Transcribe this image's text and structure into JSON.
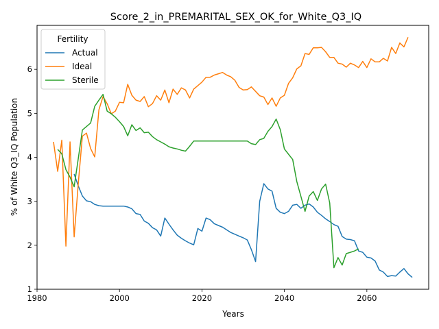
{
  "chart_data": {
    "type": "line",
    "title": "Score_2_in_PREMARITAL_SEX_OK_for_White_Q3_IQ",
    "xlabel": "Years",
    "ylabel": "% of White Q3_IQ Population",
    "xlim": [
      1980,
      2075
    ],
    "ylim": [
      1,
      7
    ],
    "xticks": [
      1980,
      2000,
      2020,
      2040,
      2060
    ],
    "yticks": [
      1,
      2,
      3,
      4,
      5,
      6
    ],
    "grid": false,
    "legend": {
      "title": "Fertility",
      "position": "top-left"
    },
    "series": [
      {
        "name": "Actual",
        "color": "#1f77b4",
        "points": [
          [
            1989,
            3.62
          ],
          [
            1990,
            3.35
          ],
          [
            1991,
            3.12
          ],
          [
            1992,
            3.01
          ],
          [
            1993,
            2.99
          ],
          [
            1994,
            2.93
          ],
          [
            1995,
            2.9
          ],
          [
            1996,
            2.89
          ],
          [
            1997,
            2.89
          ],
          [
            1998,
            2.89
          ],
          [
            1999,
            2.89
          ],
          [
            2000,
            2.89
          ],
          [
            2001,
            2.89
          ],
          [
            2002,
            2.87
          ],
          [
            2003,
            2.83
          ],
          [
            2004,
            2.72
          ],
          [
            2005,
            2.7
          ],
          [
            2006,
            2.55
          ],
          [
            2007,
            2.5
          ],
          [
            2008,
            2.4
          ],
          [
            2009,
            2.35
          ],
          [
            2010,
            2.21
          ],
          [
            2011,
            2.62
          ],
          [
            2012,
            2.48
          ],
          [
            2013,
            2.35
          ],
          [
            2014,
            2.23
          ],
          [
            2015,
            2.16
          ],
          [
            2016,
            2.1
          ],
          [
            2017,
            2.05
          ],
          [
            2018,
            2.01
          ],
          [
            2019,
            2.38
          ],
          [
            2020,
            2.32
          ],
          [
            2021,
            2.62
          ],
          [
            2022,
            2.58
          ],
          [
            2023,
            2.49
          ],
          [
            2024,
            2.45
          ],
          [
            2025,
            2.41
          ],
          [
            2026,
            2.35
          ],
          [
            2027,
            2.29
          ],
          [
            2028,
            2.25
          ],
          [
            2029,
            2.21
          ],
          [
            2030,
            2.17
          ],
          [
            2031,
            2.12
          ],
          [
            2032,
            1.9
          ],
          [
            2033,
            1.63
          ],
          [
            2034,
            3.0
          ],
          [
            2035,
            3.4
          ],
          [
            2036,
            3.28
          ],
          [
            2037,
            3.23
          ],
          [
            2038,
            2.84
          ],
          [
            2039,
            2.75
          ],
          [
            2040,
            2.72
          ],
          [
            2041,
            2.77
          ],
          [
            2042,
            2.91
          ],
          [
            2043,
            2.93
          ],
          [
            2044,
            2.84
          ],
          [
            2045,
            2.91
          ],
          [
            2046,
            2.94
          ],
          [
            2047,
            2.87
          ],
          [
            2048,
            2.75
          ],
          [
            2049,
            2.68
          ],
          [
            2050,
            2.6
          ],
          [
            2051,
            2.54
          ],
          [
            2052,
            2.47
          ],
          [
            2053,
            2.43
          ],
          [
            2054,
            2.2
          ],
          [
            2055,
            2.14
          ],
          [
            2056,
            2.13
          ],
          [
            2057,
            2.1
          ],
          [
            2058,
            1.87
          ],
          [
            2059,
            1.84
          ],
          [
            2060,
            1.73
          ],
          [
            2061,
            1.71
          ],
          [
            2062,
            1.64
          ],
          [
            2063,
            1.44
          ],
          [
            2064,
            1.39
          ],
          [
            2065,
            1.29
          ],
          [
            2066,
            1.31
          ],
          [
            2067,
            1.3
          ],
          [
            2068,
            1.39
          ],
          [
            2069,
            1.47
          ],
          [
            2070,
            1.35
          ],
          [
            2071,
            1.27
          ]
        ]
      },
      {
        "name": "Ideal",
        "color": "#ff7f0e",
        "points": [
          [
            1984,
            4.35
          ],
          [
            1985,
            3.68
          ],
          [
            1986,
            4.39
          ],
          [
            1987,
            1.98
          ],
          [
            1988,
            4.35
          ],
          [
            1989,
            2.19
          ],
          [
            1990,
            3.4
          ],
          [
            1991,
            4.48
          ],
          [
            1992,
            4.55
          ],
          [
            1993,
            4.2
          ],
          [
            1994,
            4.01
          ],
          [
            1995,
            5.08
          ],
          [
            1996,
            5.38
          ],
          [
            1997,
            5.22
          ],
          [
            1998,
            4.99
          ],
          [
            1999,
            5.05
          ],
          [
            2000,
            5.25
          ],
          [
            2001,
            5.24
          ],
          [
            2002,
            5.66
          ],
          [
            2003,
            5.41
          ],
          [
            2004,
            5.3
          ],
          [
            2005,
            5.27
          ],
          [
            2006,
            5.38
          ],
          [
            2007,
            5.15
          ],
          [
            2008,
            5.22
          ],
          [
            2009,
            5.4
          ],
          [
            2010,
            5.3
          ],
          [
            2011,
            5.53
          ],
          [
            2012,
            5.24
          ],
          [
            2013,
            5.55
          ],
          [
            2014,
            5.43
          ],
          [
            2015,
            5.58
          ],
          [
            2016,
            5.53
          ],
          [
            2017,
            5.35
          ],
          [
            2018,
            5.55
          ],
          [
            2019,
            5.63
          ],
          [
            2020,
            5.71
          ],
          [
            2021,
            5.82
          ],
          [
            2022,
            5.82
          ],
          [
            2023,
            5.87
          ],
          [
            2024,
            5.9
          ],
          [
            2025,
            5.93
          ],
          [
            2026,
            5.87
          ],
          [
            2027,
            5.83
          ],
          [
            2028,
            5.75
          ],
          [
            2029,
            5.59
          ],
          [
            2030,
            5.53
          ],
          [
            2031,
            5.54
          ],
          [
            2032,
            5.6
          ],
          [
            2033,
            5.5
          ],
          [
            2034,
            5.4
          ],
          [
            2035,
            5.37
          ],
          [
            2036,
            5.2
          ],
          [
            2037,
            5.35
          ],
          [
            2038,
            5.16
          ],
          [
            2039,
            5.35
          ],
          [
            2040,
            5.41
          ],
          [
            2041,
            5.68
          ],
          [
            2042,
            5.81
          ],
          [
            2043,
            6.01
          ],
          [
            2044,
            6.08
          ],
          [
            2045,
            6.36
          ],
          [
            2046,
            6.34
          ],
          [
            2047,
            6.49
          ],
          [
            2048,
            6.49
          ],
          [
            2049,
            6.5
          ],
          [
            2050,
            6.4
          ],
          [
            2051,
            6.27
          ],
          [
            2052,
            6.27
          ],
          [
            2053,
            6.14
          ],
          [
            2054,
            6.12
          ],
          [
            2055,
            6.05
          ],
          [
            2056,
            6.14
          ],
          [
            2057,
            6.1
          ],
          [
            2058,
            6.04
          ],
          [
            2059,
            6.18
          ],
          [
            2060,
            6.04
          ],
          [
            2061,
            6.24
          ],
          [
            2062,
            6.17
          ],
          [
            2063,
            6.17
          ],
          [
            2064,
            6.25
          ],
          [
            2065,
            6.19
          ],
          [
            2066,
            6.5
          ],
          [
            2067,
            6.36
          ],
          [
            2068,
            6.6
          ],
          [
            2069,
            6.51
          ],
          [
            2070,
            6.73
          ]
        ]
      },
      {
        "name": "Sterile",
        "color": "#2ca02c",
        "points": [
          [
            1985,
            4.18
          ],
          [
            1986,
            4.08
          ],
          [
            1987,
            3.72
          ],
          [
            1988,
            3.55
          ],
          [
            1989,
            3.33
          ],
          [
            1990,
            3.97
          ],
          [
            1991,
            4.62
          ],
          [
            1992,
            4.7
          ],
          [
            1993,
            4.78
          ],
          [
            1994,
            5.16
          ],
          [
            1995,
            5.3
          ],
          [
            1996,
            5.43
          ],
          [
            1997,
            5.05
          ],
          [
            1998,
            4.99
          ],
          [
            1999,
            4.91
          ],
          [
            2000,
            4.81
          ],
          [
            2001,
            4.7
          ],
          [
            2002,
            4.49
          ],
          [
            2003,
            4.74
          ],
          [
            2004,
            4.61
          ],
          [
            2005,
            4.67
          ],
          [
            2006,
            4.56
          ],
          [
            2007,
            4.57
          ],
          [
            2008,
            4.47
          ],
          [
            2009,
            4.4
          ],
          [
            2010,
            4.35
          ],
          [
            2011,
            4.3
          ],
          [
            2012,
            4.24
          ],
          [
            2013,
            4.21
          ],
          [
            2014,
            4.19
          ],
          [
            2015,
            4.16
          ],
          [
            2016,
            4.14
          ],
          [
            2017,
            4.25
          ],
          [
            2018,
            4.37
          ],
          [
            2019,
            4.37
          ],
          [
            2020,
            4.37
          ],
          [
            2021,
            4.37
          ],
          [
            2022,
            4.37
          ],
          [
            2023,
            4.37
          ],
          [
            2024,
            4.37
          ],
          [
            2025,
            4.37
          ],
          [
            2026,
            4.37
          ],
          [
            2027,
            4.37
          ],
          [
            2028,
            4.37
          ],
          [
            2029,
            4.37
          ],
          [
            2030,
            4.37
          ],
          [
            2031,
            4.37
          ],
          [
            2032,
            4.31
          ],
          [
            2033,
            4.29
          ],
          [
            2034,
            4.4
          ],
          [
            2035,
            4.43
          ],
          [
            2036,
            4.59
          ],
          [
            2037,
            4.7
          ],
          [
            2038,
            4.87
          ],
          [
            2039,
            4.63
          ],
          [
            2040,
            4.19
          ],
          [
            2041,
            4.07
          ],
          [
            2042,
            3.95
          ],
          [
            2043,
            3.45
          ],
          [
            2044,
            3.11
          ],
          [
            2045,
            2.77
          ],
          [
            2046,
            3.12
          ],
          [
            2047,
            3.22
          ],
          [
            2048,
            3.02
          ],
          [
            2049,
            3.28
          ],
          [
            2050,
            3.39
          ],
          [
            2051,
            2.96
          ],
          [
            2052,
            1.49
          ],
          [
            2053,
            1.72
          ],
          [
            2054,
            1.55
          ],
          [
            2055,
            1.81
          ],
          [
            2056,
            1.84
          ],
          [
            2057,
            1.87
          ],
          [
            2058,
            1.92
          ]
        ]
      }
    ]
  }
}
